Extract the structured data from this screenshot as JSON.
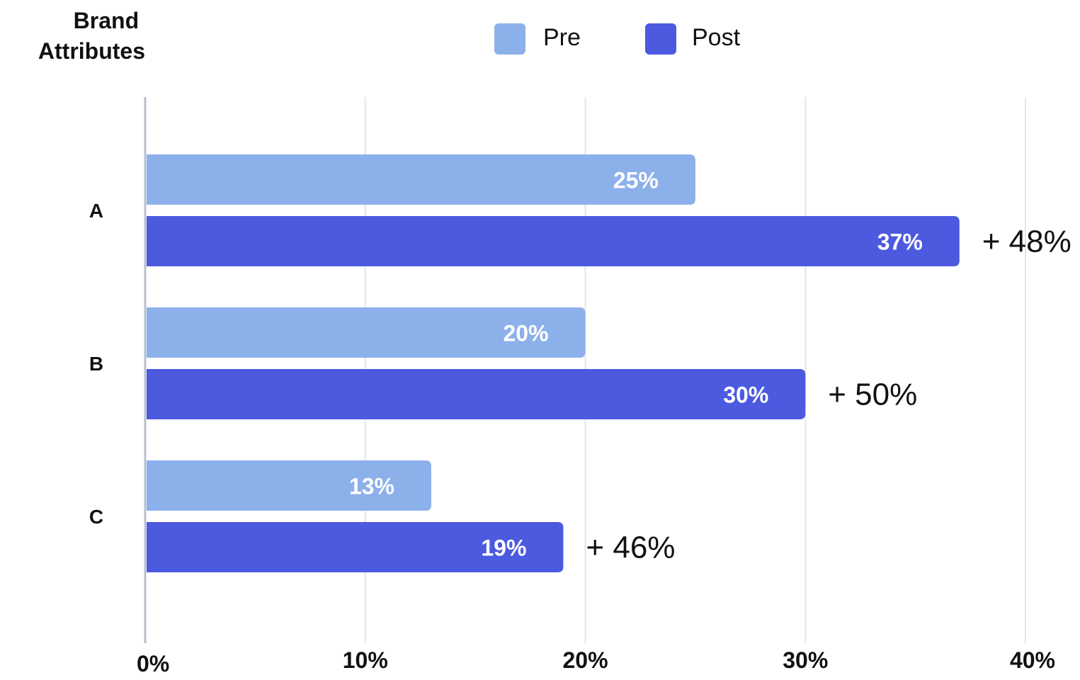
{
  "chart_data": {
    "type": "bar",
    "orientation": "horizontal",
    "ylabel": "Brand Attributes",
    "categories": [
      "A",
      "B",
      "C"
    ],
    "series": [
      {
        "name": "Pre",
        "values": [
          25,
          20,
          13
        ],
        "labels": [
          "25%",
          "20%",
          "13%"
        ],
        "color": "#8CB0EA"
      },
      {
        "name": "Post",
        "values": [
          37,
          30,
          19
        ],
        "labels": [
          "37%",
          "30%",
          "19%"
        ],
        "color": "#4C5AE0"
      }
    ],
    "changes": [
      "+ 48%",
      "+ 50%",
      "+ 46%"
    ],
    "xlim": [
      0,
      40
    ],
    "xticks": [
      0,
      10,
      20,
      30,
      40
    ],
    "xtick_labels": [
      "0%",
      "10%",
      "20%",
      "30%",
      "40%"
    ],
    "grid": true,
    "legend_position": "top-center"
  }
}
